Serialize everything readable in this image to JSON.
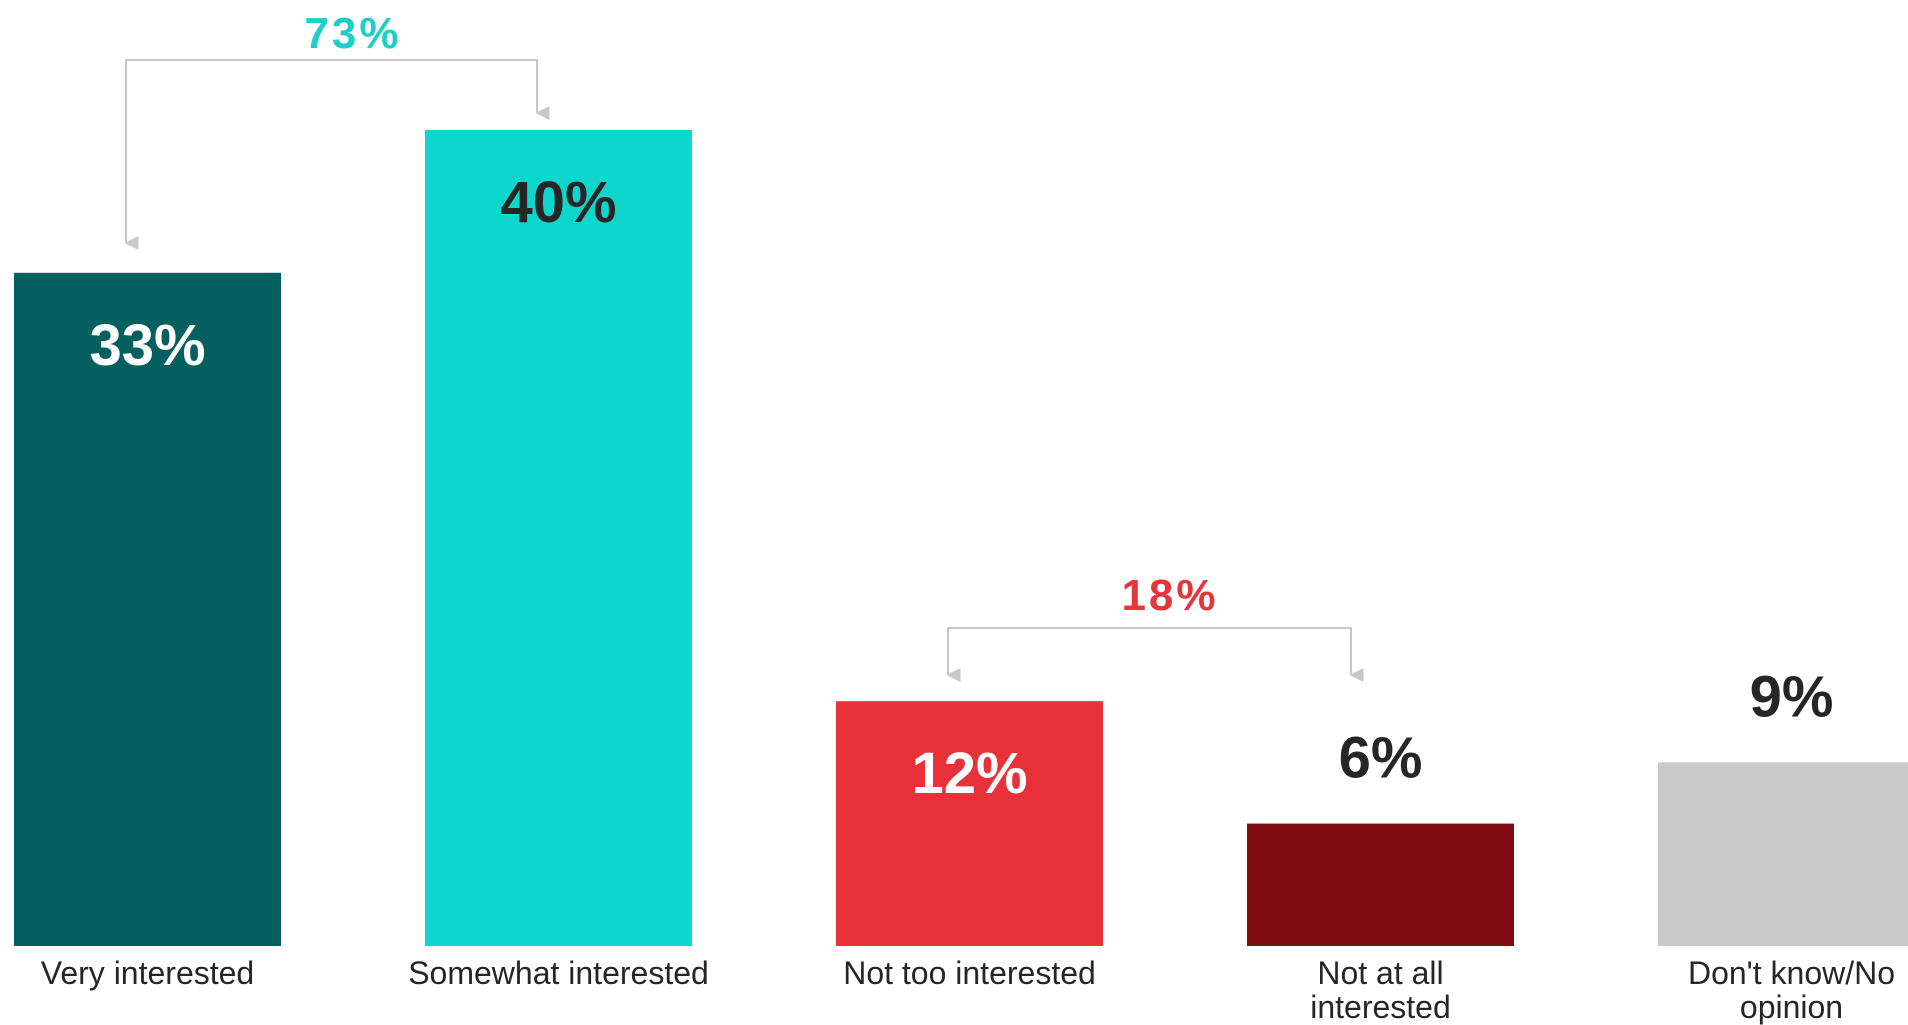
{
  "chart_data": {
    "type": "bar",
    "categories": [
      "Very interested",
      "Somewhat interested",
      "Not too interested",
      "Not at all interested",
      "Don't know/No opinion"
    ],
    "values": [
      33,
      40,
      12,
      6,
      9
    ],
    "value_labels": [
      "33%",
      "40%",
      "12%",
      "6%",
      "9%"
    ],
    "colors": [
      "#045f5f",
      "#0fd6cc",
      "#e83138",
      "#7f0d11",
      "#c9c9c9"
    ],
    "label_colors": [
      "#ffffff",
      "#262626",
      "#ffffff",
      "#262626",
      "#262626"
    ],
    "label_position": [
      "inside",
      "inside",
      "inside",
      "above",
      "above"
    ],
    "ylim": [
      0,
      40
    ],
    "grid": false,
    "legend": "none",
    "brackets": [
      {
        "label": "73%",
        "value": 73,
        "color": "#1dd0c6",
        "spans": [
          "Very interested",
          "Somewhat interested"
        ]
      },
      {
        "label": "18%",
        "value": 18,
        "color": "#e8353c",
        "spans": [
          "Not too interested",
          "Not at all interested"
        ]
      }
    ]
  }
}
